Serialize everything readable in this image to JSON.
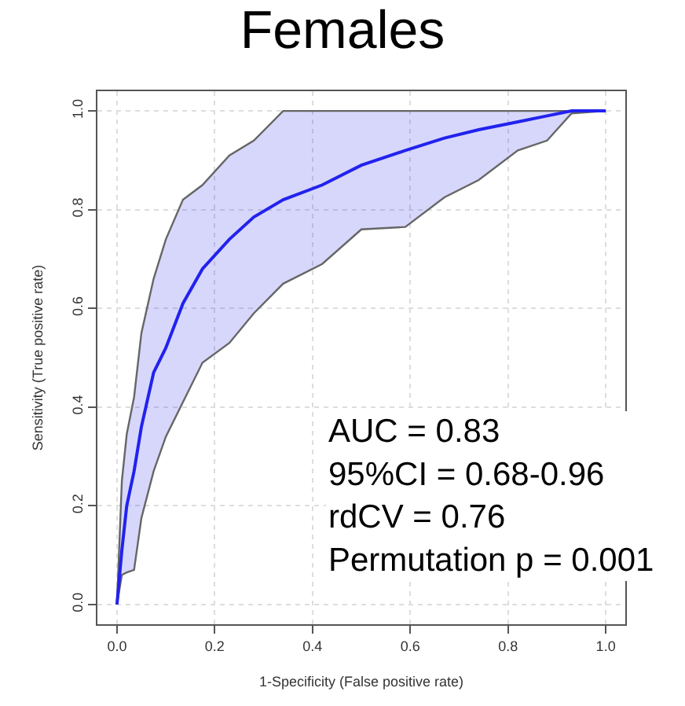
{
  "chart_data": {
    "type": "line",
    "title": "Females",
    "xlabel": "1-Specificity (False positive rate)",
    "ylabel": "Sensitivity (True positive rate)",
    "x": [
      0,
      0.01,
      0.02,
      0.035,
      0.05,
      0.075,
      0.1,
      0.135,
      0.175,
      0.23,
      0.28,
      0.34,
      0.42,
      0.5,
      0.59,
      0.67,
      0.74,
      0.82,
      0.88,
      0.93,
      1.0
    ],
    "series": [
      {
        "color": "#2222ee",
        "values": [
          0,
          0.11,
          0.2,
          0.27,
          0.36,
          0.47,
          0.52,
          0.61,
          0.68,
          0.74,
          0.785,
          0.82,
          0.85,
          0.89,
          0.92,
          0.945,
          0.962,
          0.978,
          0.99,
          1.0,
          1.0
        ],
        "upper": [
          0,
          0.25,
          0.345,
          0.42,
          0.55,
          0.66,
          0.74,
          0.82,
          0.85,
          0.91,
          0.94,
          1.0,
          1.0,
          1.0,
          1.0,
          1.0,
          1.0,
          1.0,
          1.0,
          1.0,
          1.0
        ],
        "lower": [
          0,
          0.06,
          0.065,
          0.07,
          0.175,
          0.27,
          0.34,
          0.41,
          0.49,
          0.53,
          0.59,
          0.65,
          0.69,
          0.76,
          0.765,
          0.825,
          0.86,
          0.92,
          0.94,
          0.995,
          1.0
        ]
      }
    ],
    "xlim": [
      -0.04,
      1.04
    ],
    "ylim": [
      -0.04,
      1.04
    ],
    "xticks": [
      {
        "value": 0,
        "label": "0.0"
      },
      0.2,
      0.4,
      0.6,
      0.8,
      {
        "value": 1,
        "label": "1.0"
      }
    ],
    "yticks": [
      {
        "value": 0,
        "label": "0.0"
      },
      0.2,
      0.4,
      0.6,
      0.8,
      {
        "value": 1,
        "label": "1.0"
      }
    ],
    "grid": true,
    "line_style": "solid",
    "annotations": [
      "AUC = 0.83",
      "95%CI = 0.68-0.96",
      "rdCV = 0.76",
      "Permutation p = 0.001"
    ]
  }
}
